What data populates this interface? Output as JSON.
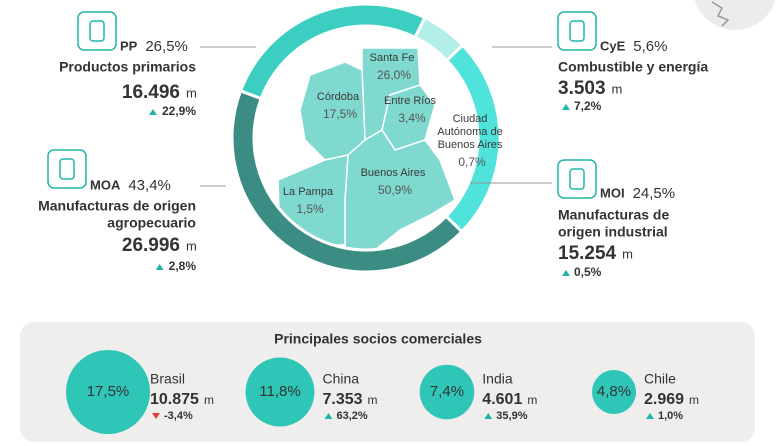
{
  "segments": [
    {
      "code": "CyE",
      "share": 5.6,
      "share_label": "5,6%",
      "name_lines": [
        "Combustible y energía"
      ],
      "amount": "3.503",
      "unit": "m",
      "change": "7,2%",
      "trend": "up",
      "color": "#b3efe9"
    },
    {
      "code": "MOI",
      "share": 24.5,
      "share_label": "24,5%",
      "name_lines": [
        "Manufacturas de",
        "origen industrial"
      ],
      "amount": "15.254",
      "unit": "m",
      "change": "0,5%",
      "trend": "up",
      "color": "#4fe3dc"
    },
    {
      "code": "MOA",
      "share": 43.4,
      "share_label": "43,4%",
      "name_lines": [
        "Manufacturas de origen",
        "agropecuario"
      ],
      "amount": "26.996",
      "unit": "m",
      "change": "2,8%",
      "trend": "up",
      "color": "#3b8c83"
    },
    {
      "code": "PP",
      "share": 26.5,
      "share_label": "26,5%",
      "name_lines": [
        "Productos primarios"
      ],
      "amount": "16.496",
      "unit": "m",
      "change": "22,9%",
      "trend": "up",
      "color": "#3ccfc1"
    }
  ],
  "provinces": [
    {
      "name_lines": [
        "Santa Fe"
      ],
      "share": "26,0%"
    },
    {
      "name_lines": [
        "Córdoba"
      ],
      "share": "17,5%"
    },
    {
      "name_lines": [
        "Entre Ríos"
      ],
      "share": "3,4%"
    },
    {
      "name_lines": [
        "Ciudad",
        "Autónoma de",
        "Buenos Aires"
      ],
      "share": "0,7%"
    },
    {
      "name_lines": [
        "Buenos Aires"
      ],
      "share": "50,9%"
    },
    {
      "name_lines": [
        "La Pampa"
      ],
      "share": "1,5%"
    }
  ],
  "partners": {
    "title": "Principales socios comerciales",
    "items": [
      {
        "share": 17.5,
        "share_label": "17,5%",
        "name": "Brasil",
        "amount": "10.875",
        "unit": "m",
        "change": "-3,4%",
        "trend": "down"
      },
      {
        "share": 11.8,
        "share_label": "11,8%",
        "name": "China",
        "amount": "7.353",
        "unit": "m",
        "change": "63,2%",
        "trend": "up"
      },
      {
        "share": 7.4,
        "share_label": "7,4%",
        "name": "India",
        "amount": "4.601",
        "unit": "m",
        "change": "35,9%",
        "trend": "up"
      },
      {
        "share": 4.8,
        "share_label": "4,8%",
        "name": "Chile",
        "amount": "2.969",
        "unit": "m",
        "change": "1,0%",
        "trend": "up"
      }
    ]
  }
}
